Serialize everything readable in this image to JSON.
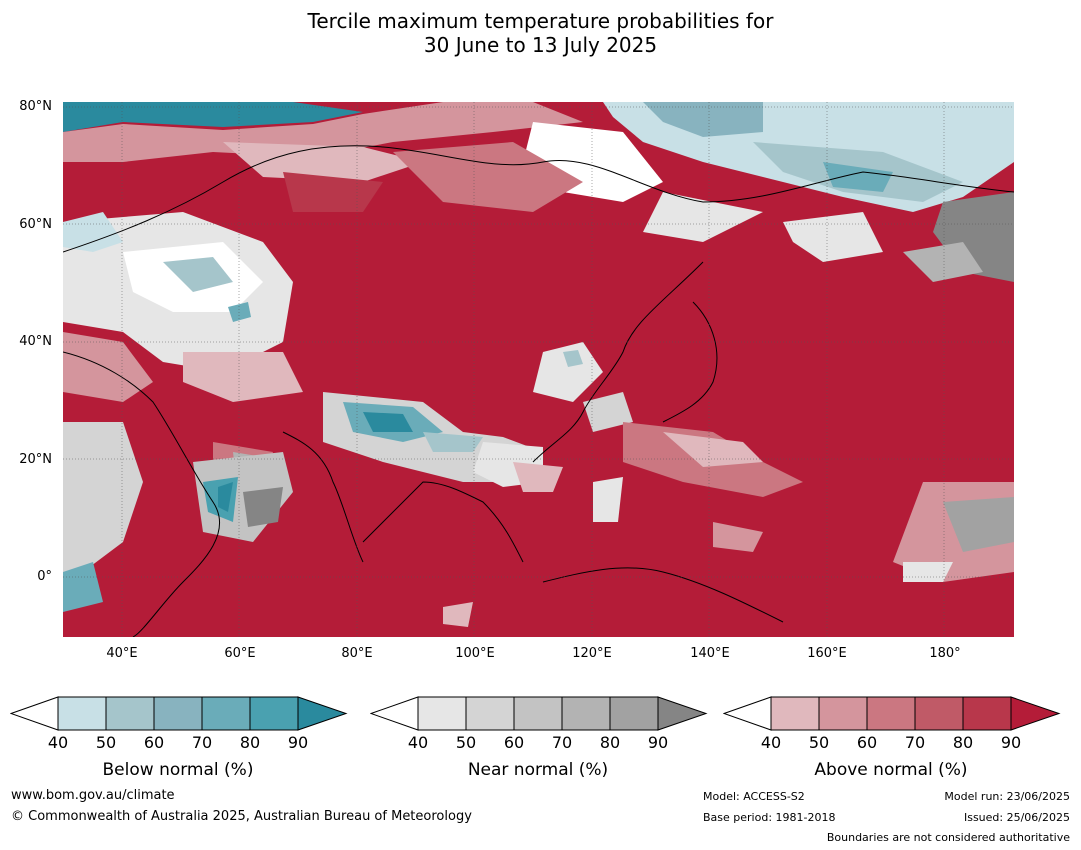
{
  "title": {
    "line1": "Tercile maximum temperature probabilities for",
    "line2": "30 June to 13 July 2025"
  },
  "map": {
    "region": "Asia, Indian Ocean and western Pacific",
    "dominant_category": "Above normal",
    "dominant_color": "#b41c38",
    "lat_labels": [
      "80°N",
      "60°N",
      "40°N",
      "20°N",
      "0°"
    ],
    "lon_labels": [
      "40°E",
      "60°E",
      "80°E",
      "100°E",
      "120°E",
      "140°E",
      "160°E",
      "180°"
    ],
    "coverage": {
      "lon_min": 30,
      "lon_max": 192,
      "lat_min": -10,
      "lat_max": 81
    }
  },
  "colorbars": [
    {
      "label": "Below normal (%)",
      "ticks": [
        "40",
        "50",
        "60",
        "70",
        "80",
        "90"
      ],
      "colors": [
        "#c8e0e6",
        "#a5c5cb",
        "#88b3bf",
        "#6aacb9",
        "#4aa1b0",
        "#2a8a9e"
      ]
    },
    {
      "label": "Near normal (%)",
      "ticks": [
        "40",
        "50",
        "60",
        "70",
        "80",
        "90"
      ],
      "colors": [
        "#e6e6e6",
        "#d4d4d4",
        "#c3c3c3",
        "#b3b3b3",
        "#a2a2a2",
        "#858585"
      ]
    },
    {
      "label": "Above normal (%)",
      "ticks": [
        "40",
        "50",
        "60",
        "70",
        "80",
        "90"
      ],
      "colors": [
        "#e0b8bd",
        "#d4959d",
        "#cb7781",
        "#c05a67",
        "#b8374b",
        "#b41c38"
      ]
    }
  ],
  "footer": {
    "website": "www.bom.gov.au/climate",
    "copyright": "© Commonwealth of Australia 2025, Australian Bureau of Meteorology",
    "model": "Model: ACCESS-S2",
    "base_period": "Base period: 1981-2018",
    "model_run": "Model run: 23/06/2025",
    "issued": "Issued: 25/06/2025",
    "disclaimer": "Boundaries are not considered authoritative"
  }
}
